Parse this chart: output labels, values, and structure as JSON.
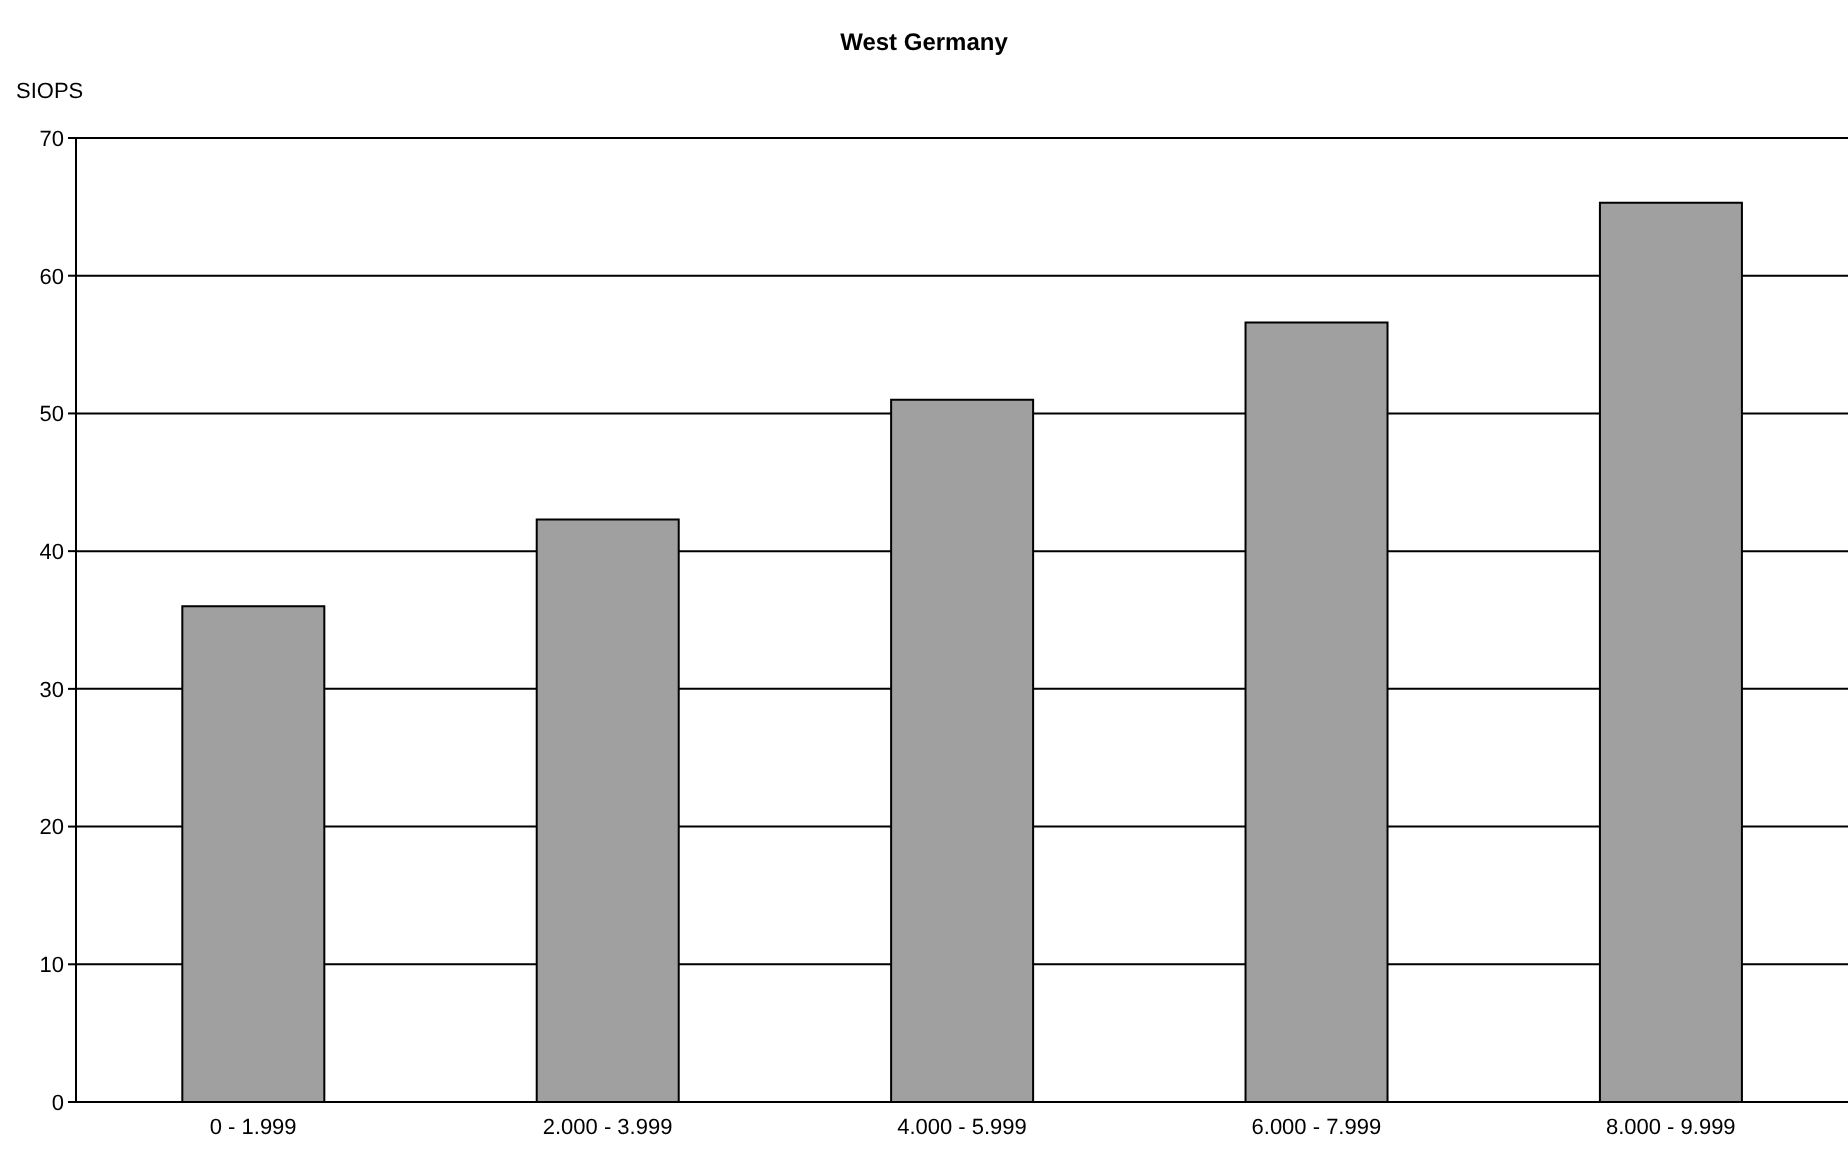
{
  "chart_data": {
    "type": "bar",
    "title": "West Germany",
    "ylabel": "SIOPS",
    "categories": [
      "0 - 1.999",
      "2.000 - 3.999",
      "4.000 - 5.999",
      "6.000 - 7.999",
      "8.000 - 9.999"
    ],
    "values": [
      36,
      42.3,
      51,
      56.6,
      65.3
    ],
    "color": "#a0a0a0",
    "ylim": [
      0,
      70
    ],
    "yticks": [
      0,
      10,
      20,
      30,
      40,
      50,
      60,
      70
    ],
    "grid": "y"
  }
}
